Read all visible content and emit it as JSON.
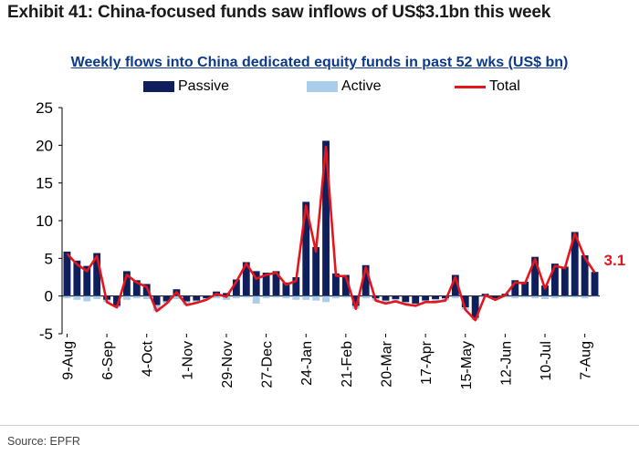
{
  "header": {
    "exhibit_title": "Exhibit 41: China-focused funds saw inflows of US$3.1bn this week"
  },
  "footer": {
    "source": "Source: EPFR"
  },
  "colors": {
    "passive": "#0f1f5c",
    "active": "#a9cdea",
    "total": "#e4161c",
    "annotation": "#e4161c"
  },
  "chart_data": {
    "type": "bar",
    "title": "Weekly flows into China dedicated equity funds in past 52 wks (US$ bn)",
    "xlabel": "",
    "ylabel": "",
    "ylim": [
      -5,
      25
    ],
    "yticks": [
      "25",
      "20",
      "15",
      "10",
      "5",
      "0",
      "-5"
    ],
    "legend_position": "top",
    "grid": false,
    "x_tick_labels": [
      "9-Aug",
      "6-Sep",
      "4-Oct",
      "1-Nov",
      "29-Nov",
      "27-Dec",
      "24-Jan",
      "21-Feb",
      "20-Mar",
      "17-Apr",
      "15-May",
      "12-Jun",
      "10-Jul",
      "7-Aug"
    ],
    "x_tick_every": 4,
    "series": [
      {
        "name": "Passive",
        "type": "bar",
        "values": [
          5.9,
          4.7,
          4.0,
          5.7,
          -0.5,
          -1.3,
          3.3,
          2.1,
          1.6,
          -1.2,
          -0.7,
          0.9,
          -0.7,
          -0.6,
          -0.3,
          0.6,
          0.4,
          2.2,
          4.5,
          3.3,
          3.1,
          3.3,
          1.8,
          2.5,
          12.5,
          6.5,
          20.6,
          3.0,
          2.8,
          -1.3,
          4.1,
          -0.3,
          -0.6,
          -0.4,
          -0.8,
          -1.0,
          -0.6,
          -0.4,
          -0.3,
          2.8,
          -1.5,
          -2.9,
          0.3,
          -0.3,
          0.3,
          2.1,
          1.9,
          5.2,
          1.4,
          4.3,
          3.9,
          8.5,
          5.4,
          3.2
        ]
      },
      {
        "name": "Active",
        "type": "bar",
        "values": [
          -0.3,
          -0.5,
          -0.7,
          -0.4,
          -0.3,
          -0.2,
          -0.5,
          -0.3,
          -0.4,
          -0.8,
          -0.3,
          -0.4,
          -0.5,
          -0.3,
          -0.2,
          -0.3,
          -0.5,
          -0.3,
          -0.2,
          -1.0,
          -0.3,
          -0.2,
          -0.3,
          -0.5,
          -0.5,
          -0.6,
          -0.8,
          -0.3,
          -0.2,
          -0.4,
          -0.3,
          -0.3,
          -0.4,
          -0.3,
          -0.3,
          -0.3,
          -0.2,
          -0.4,
          -0.3,
          -0.3,
          -0.3,
          -0.3,
          -0.2,
          -0.2,
          -0.2,
          -0.3,
          -0.2,
          -0.3,
          -0.4,
          -0.3,
          -0.2,
          -0.2,
          -0.3,
          -0.1
        ]
      },
      {
        "name": "Total",
        "type": "line",
        "values": [
          5.6,
          4.2,
          3.3,
          5.3,
          -0.8,
          -1.5,
          2.8,
          1.8,
          1.2,
          -2.0,
          -1.0,
          0.5,
          -1.2,
          -0.9,
          -0.5,
          0.3,
          -0.1,
          1.9,
          4.3,
          2.3,
          2.8,
          3.1,
          1.5,
          2.0,
          12.0,
          5.9,
          19.8,
          2.7,
          2.6,
          -1.7,
          3.8,
          -0.6,
          -1.0,
          -0.7,
          -1.1,
          -1.3,
          -0.8,
          -0.8,
          -0.6,
          2.5,
          -1.8,
          -3.2,
          0.1,
          -0.5,
          0.1,
          1.8,
          1.7,
          4.9,
          1.0,
          4.0,
          3.7,
          8.3,
          5.1,
          3.1
        ]
      }
    ],
    "annotations": [
      {
        "text": "3.1"
      }
    ]
  }
}
